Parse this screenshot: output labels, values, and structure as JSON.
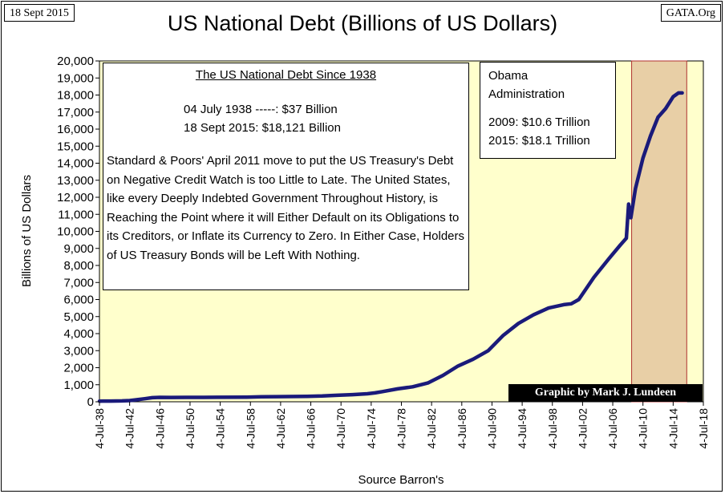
{
  "date_tag": "18 Sept 2015",
  "source_tag": "GATA.Org",
  "colors": {
    "plot_background": "#ffffcc",
    "series_line": "#1a1a7a",
    "highlight_fill": "#e8cfa6",
    "highlight_border": "#b03030"
  },
  "chart_data": {
    "type": "line",
    "title": "US National Debt (Billions of US Dollars)",
    "xlabel": "Source Barron's",
    "ylabel": "Billions of US Dollars",
    "ylim": [
      0,
      20000
    ],
    "yticks": [
      0,
      1000,
      2000,
      3000,
      4000,
      5000,
      6000,
      7000,
      8000,
      9000,
      10000,
      11000,
      12000,
      13000,
      14000,
      15000,
      16000,
      17000,
      18000,
      19000,
      20000
    ],
    "xlim": [
      1938.5,
      2018.5
    ],
    "xticks": [
      {
        "x": 1938.5,
        "label": "4-Jul-38"
      },
      {
        "x": 1942.5,
        "label": "4-Jul-42"
      },
      {
        "x": 1946.5,
        "label": "4-Jul-46"
      },
      {
        "x": 1950.5,
        "label": "4-Jul-50"
      },
      {
        "x": 1954.5,
        "label": "4-Jul-54"
      },
      {
        "x": 1958.5,
        "label": "4-Jul-58"
      },
      {
        "x": 1962.5,
        "label": "4-Jul-62"
      },
      {
        "x": 1966.5,
        "label": "4-Jul-66"
      },
      {
        "x": 1970.5,
        "label": "4-Jul-70"
      },
      {
        "x": 1974.5,
        "label": "4-Jul-74"
      },
      {
        "x": 1978.5,
        "label": "4-Jul-78"
      },
      {
        "x": 1982.5,
        "label": "4-Jul-82"
      },
      {
        "x": 1986.5,
        "label": "4-Jul-86"
      },
      {
        "x": 1990.5,
        "label": "4-Jul-90"
      },
      {
        "x": 1994.5,
        "label": "4-Jul-94"
      },
      {
        "x": 1998.5,
        "label": "4-Jul-98"
      },
      {
        "x": 2002.5,
        "label": "4-Jul-02"
      },
      {
        "x": 2006.5,
        "label": "4-Jul-06"
      },
      {
        "x": 2010.5,
        "label": "4-Jul-10"
      },
      {
        "x": 2014.5,
        "label": "4-Jul-14"
      },
      {
        "x": 2018.5,
        "label": "4-Jul-18"
      }
    ],
    "grid": false,
    "highlight_range": [
      2009.0,
      2016.3
    ],
    "series": [
      {
        "x": [
          1938.5,
          1940.0,
          1941.5,
          1942.5,
          1943.5,
          1944.5,
          1945.5,
          1946.5,
          1948.0,
          1950.0,
          1954.0,
          1958.0,
          1960.0,
          1962.0,
          1966.0,
          1968.0,
          1970.0,
          1972.0,
          1974.0,
          1975.0,
          1976.0,
          1978.0,
          1980.0,
          1982.0,
          1984.0,
          1986.0,
          1988.0,
          1990.0,
          1992.0,
          1994.0,
          1996.0,
          1998.0,
          2000.0,
          2001.0,
          2002.0,
          2004.0,
          2006.0,
          2007.5,
          2008.3,
          2008.6,
          2008.9,
          2009.5,
          2010.5,
          2011.5,
          2012.5,
          2013.5,
          2014.5,
          2015.2,
          2015.7
        ],
        "y": [
          37,
          40,
          50,
          72,
          120,
          180,
          240,
          260,
          255,
          258,
          265,
          275,
          290,
          300,
          320,
          340,
          380,
          420,
          470,
          520,
          600,
          760,
          880,
          1100,
          1550,
          2100,
          2500,
          3000,
          3900,
          4600,
          5100,
          5500,
          5700,
          5750,
          6000,
          7300,
          8400,
          9200,
          9600,
          11600,
          10800,
          12500,
          14300,
          15600,
          16700,
          17200,
          17900,
          18121,
          18121
        ]
      }
    ]
  },
  "intro_box": {
    "heading": "The US National Debt Since 1938",
    "line1": "04 July 1938 -----: $37 Billion",
    "line2": "18 Sept 2015: $18,121 Billion",
    "body": "Standard & Poors' April 2011 move to put the US Treasury's Debt on Negative Credit Watch is too Little to Late.  The United States, like every Deeply Indebted Government Throughout History, is Reaching the Point where it will Either Default on its Obligations to its Creditors, or Inflate its Currency to Zero.  In Either Case, Holders of US Treasury Bonds will be Left With Nothing."
  },
  "obama_box": {
    "title_line1": "Obama",
    "title_line2": "Administration",
    "line1": "2009: $10.6 Trillion",
    "line2": "2015: $18.1 Trillion"
  },
  "credit": "Graphic by Mark J. Lundeen"
}
